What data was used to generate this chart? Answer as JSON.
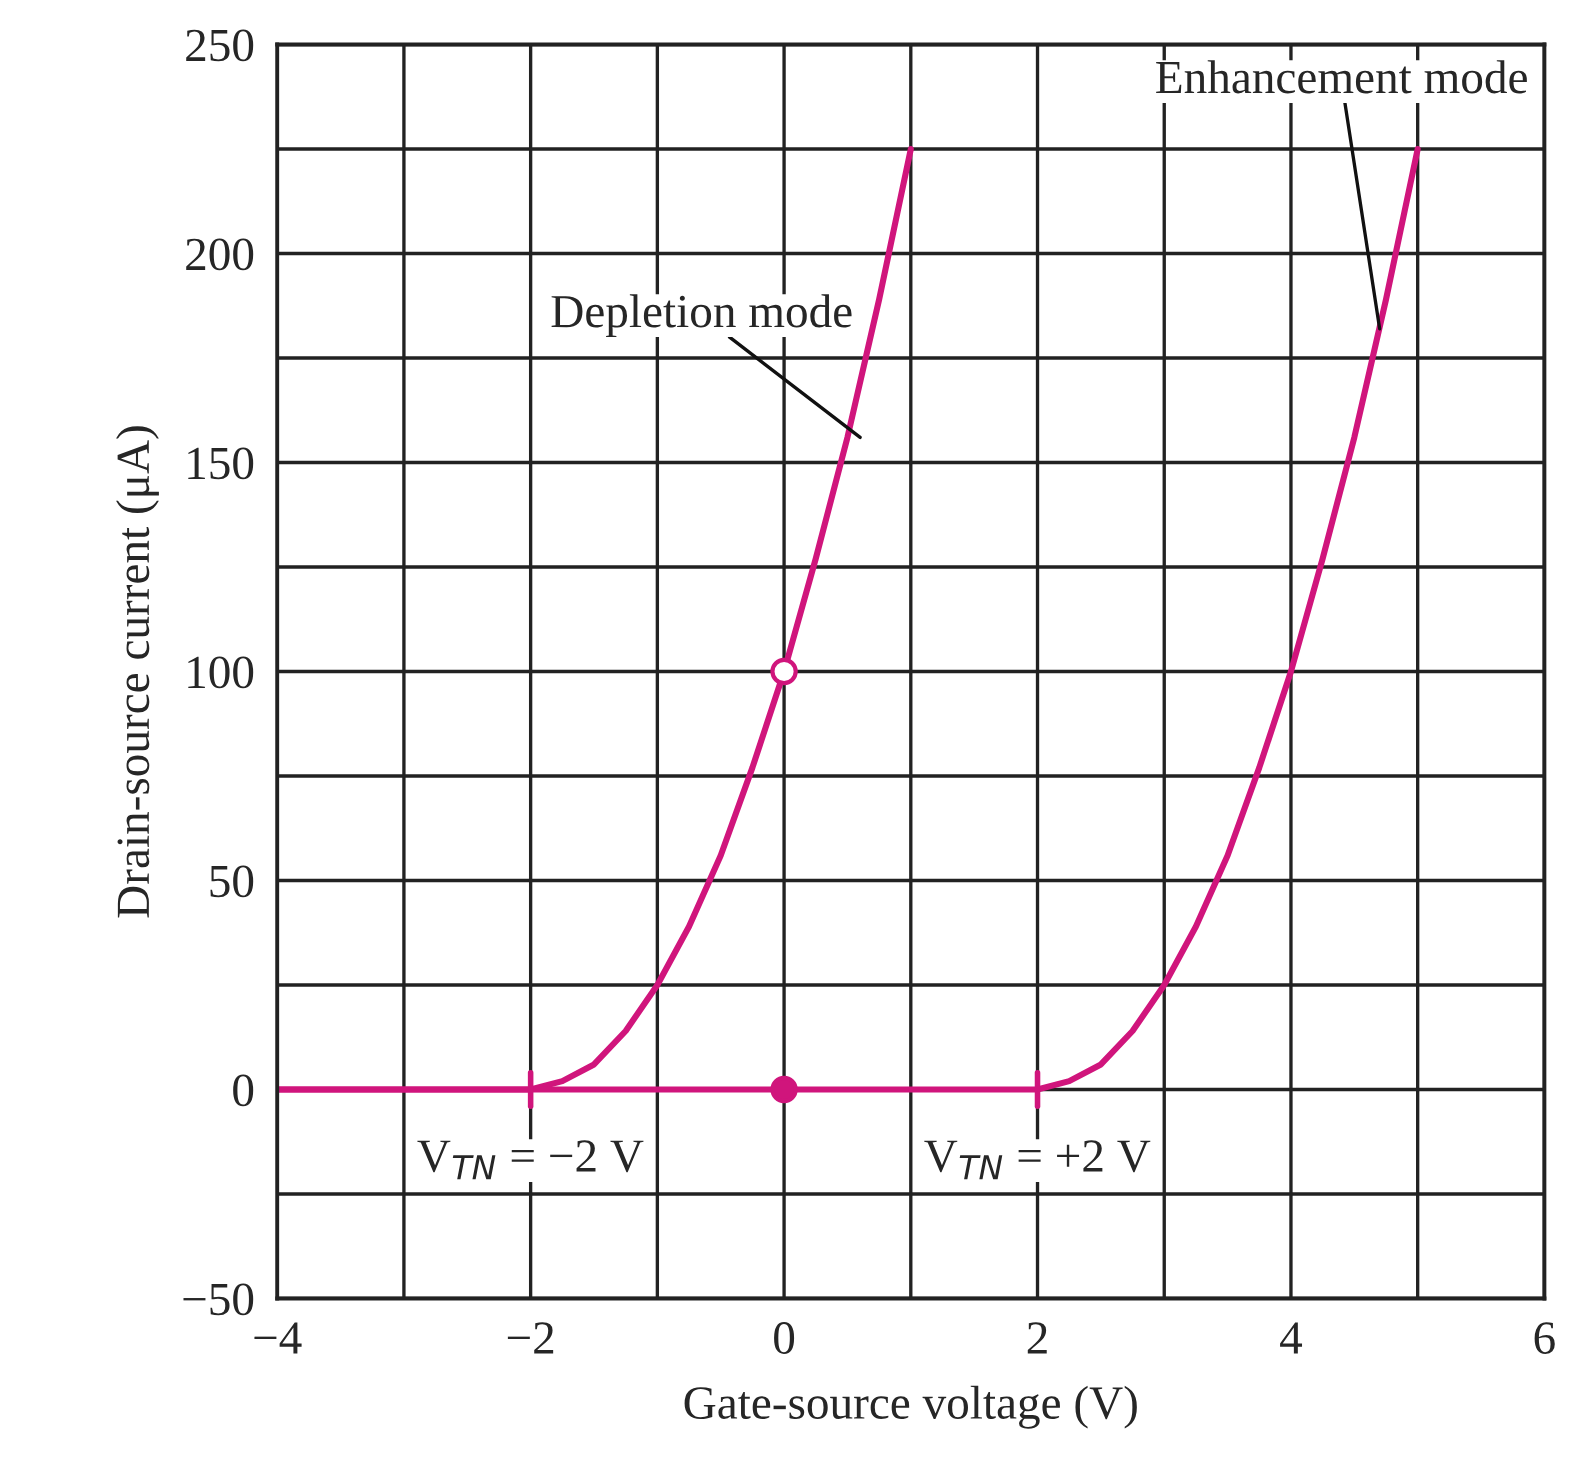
{
  "chart_data": {
    "type": "line",
    "xlabel": "Gate-source voltage (V)",
    "ylabel": "Drain-source current (μA)",
    "xlim": [
      -4,
      6
    ],
    "ylim": [
      -50,
      250
    ],
    "xticks": [
      -4,
      {
        "value": -3,
        "label": null
      },
      -2,
      {
        "value": -1,
        "label": null
      },
      0,
      {
        "value": 1,
        "label": null
      },
      2,
      {
        "value": 3,
        "label": null
      },
      4,
      {
        "value": 5,
        "label": null
      },
      6
    ],
    "yticks": [
      -50,
      {
        "value": -25,
        "label": null
      },
      0,
      {
        "value": 25,
        "label": null
      },
      50,
      {
        "value": 75,
        "label": null
      },
      100,
      {
        "value": 125,
        "label": null
      },
      150,
      {
        "value": 175,
        "label": null
      },
      200,
      {
        "value": 225,
        "label": null
      },
      250
    ],
    "grid": true,
    "legend": false,
    "line_style": "solid",
    "series": [
      {
        "color": "#d0157c",
        "x": [
          -4,
          -2,
          -1.75,
          -1.5,
          -1.25,
          -1,
          -0.75,
          -0.5,
          -0.25,
          0,
          0.25,
          0.5,
          0.75,
          1
        ],
        "values": [
          0,
          0,
          2,
          6,
          14,
          25,
          39,
          56,
          77,
          100,
          127,
          156,
          189,
          225
        ]
      },
      {
        "color": "#d0157c",
        "x": [
          -4,
          2,
          2.25,
          2.5,
          2.75,
          3,
          3.25,
          3.5,
          3.75,
          4,
          4.25,
          4.5,
          4.75,
          5
        ],
        "values": [
          0,
          0,
          2,
          6,
          14,
          25,
          39,
          56,
          77,
          100,
          127,
          156,
          189,
          225
        ]
      },
      {
        "type": "scatter",
        "color": "#d0157c",
        "colors": [
          "#ffffff"
        ],
        "marker": "circle",
        "x": [
          0
        ],
        "values": [
          100
        ]
      },
      {
        "type": "scatter",
        "color": "#d0157c",
        "colors": [
          "#d0157c"
        ],
        "marker": "circle",
        "x": [
          0
        ],
        "values": [
          0
        ]
      }
    ],
    "annotations": [
      {
        "text": "Depletion mode",
        "x": 0.6,
        "y": 156
      },
      {
        "text": "Enhancement mode",
        "x": 4.7,
        "y": 182
      },
      {
        "text": "V$_{TN}$ = −2 V",
        "x": -2,
        "y": 0
      },
      {
        "text": "V$_{TN}$ = +2 V",
        "x": 2,
        "y": 0
      }
    ]
  }
}
